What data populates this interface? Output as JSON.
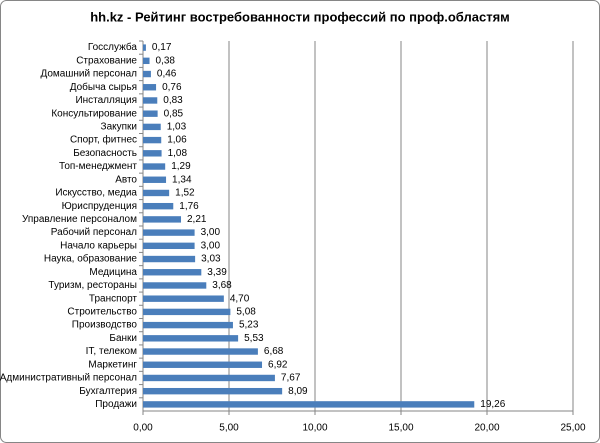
{
  "chart_data": {
    "type": "barh",
    "title": "hh.kz - Рейтинг востребованности профессий по проф.областям",
    "categories": [
      "Госслужба",
      "Страхование",
      "Домашний персонал",
      "Добыча сырья",
      "Инсталляция",
      "Консультирование",
      "Закупки",
      "Спорт, фитнес",
      "Безопасность",
      "Топ-менеджмент",
      "Авто",
      "Искусство, медиа",
      "Юриспруденция",
      "Управление персоналом",
      "Рабочий персонал",
      "Начало карьеры",
      "Наука, образование",
      "Медицина",
      "Туризм, рестораны",
      "Транспорт",
      "Строительство",
      "Производство",
      "Банки",
      "IT, телеком",
      "Маркетинг",
      "Административный персонал",
      "Бухгалтерия",
      "Продажи"
    ],
    "values": [
      0.17,
      0.38,
      0.46,
      0.76,
      0.83,
      0.85,
      1.03,
      1.06,
      1.08,
      1.29,
      1.34,
      1.52,
      1.76,
      2.21,
      3.0,
      3.0,
      3.03,
      3.39,
      3.68,
      4.7,
      5.08,
      5.23,
      5.53,
      6.68,
      6.92,
      7.67,
      8.09,
      19.26
    ],
    "value_labels": [
      "0,17",
      "0,38",
      "0,46",
      "0,76",
      "0,83",
      "0,85",
      "1,03",
      "1,06",
      "1,08",
      "1,29",
      "1,34",
      "1,52",
      "1,76",
      "2,21",
      "3,00",
      "3,00",
      "3,03",
      "3,39",
      "3,68",
      "4,70",
      "5,08",
      "5,23",
      "5,53",
      "6,68",
      "6,92",
      "7,67",
      "8,09",
      "19,26"
    ],
    "color": "#4a7ebb",
    "xlim": [
      0,
      25
    ],
    "xticks": [
      {
        "value": 0,
        "label": "0,00"
      },
      {
        "value": 5,
        "label": "5,00"
      },
      {
        "value": 10,
        "label": "10,00"
      },
      {
        "value": 15,
        "label": "15,00"
      },
      {
        "value": 20,
        "label": "20,00"
      },
      {
        "value": 25,
        "label": "25,00"
      }
    ],
    "grid": true
  }
}
